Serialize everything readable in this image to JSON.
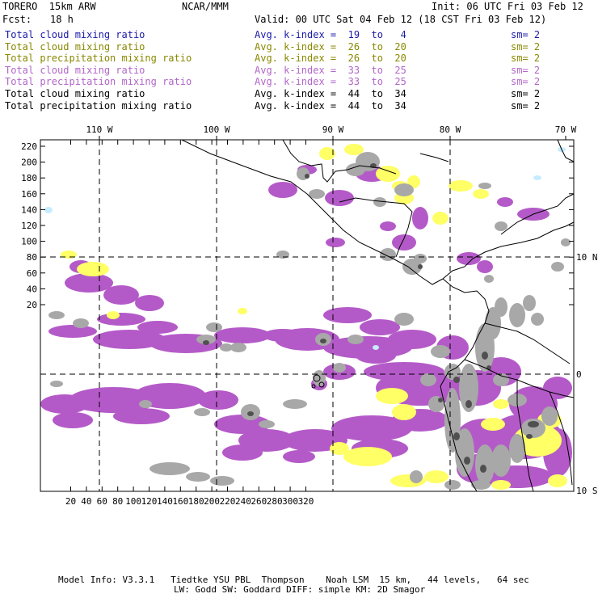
{
  "header": {
    "model": "TORERO  15km ARW",
    "org": "NCAR/MMM",
    "init": "Init: 06 UTC Fri 03 Feb 12",
    "fcst_label": "Fcst:",
    "fcst_value": "18 h",
    "valid": "Valid: 00 UTC Sat 04 Feb 12 (18 CST Fri 03 Feb 12)"
  },
  "legend": [
    {
      "field": "Total cloud mixing ratio",
      "kindex": "Avg. k-index =  19  to   4",
      "sm": "sm= 2",
      "color": "#1a1aa8"
    },
    {
      "field": "Total cloud mixing ratio",
      "kindex": "Avg. k-index =  26  to  20",
      "sm": "sm= 2",
      "color": "#888800"
    },
    {
      "field": "Total precipitation mixing ratio",
      "kindex": "Avg. k-index =  26  to  20",
      "sm": "sm= 2",
      "color": "#888800"
    },
    {
      "field": "Total cloud mixing ratio",
      "kindex": "Avg. k-index =  33  to  25",
      "sm": "sm= 2",
      "color": "#b266c8"
    },
    {
      "field": "Total precipitation mixing ratio",
      "kindex": "Avg. k-index =  33  to  25",
      "sm": "sm= 2",
      "color": "#b266c8"
    },
    {
      "field": "Total cloud mixing ratio",
      "kindex": "Avg. k-index =  44  to  34",
      "sm": "sm= 2",
      "color": "#000000"
    },
    {
      "field": "Total precipitation mixing ratio",
      "kindex": "Avg. k-index =  44  to  34",
      "sm": "sm= 2",
      "color": "#000000"
    }
  ],
  "map": {
    "top_lon_labels": [
      "110 W",
      "100 W",
      "90 W",
      "80 W",
      "70 W"
    ],
    "right_lat_labels": [
      "10 N",
      "0",
      "10 S"
    ],
    "y_ticks": [
      "220",
      "200",
      "180",
      "160",
      "140",
      "120",
      "100",
      "80",
      "60",
      "40",
      "20"
    ],
    "x_ticks": [
      "20",
      "40",
      "60",
      "80",
      "100",
      "120",
      "140",
      "160",
      "180",
      "200",
      "220",
      "240",
      "260",
      "280",
      "300",
      "320"
    ],
    "colors": {
      "light_blue": "#c6ecff",
      "yellow": "#ffff66",
      "purple": "#b45ac8",
      "gray": "#a8a8a8",
      "dark_gray": "#505050",
      "border": "#000000"
    }
  },
  "footer": {
    "line1": "Model Info: V3.3.1   Tiedtke YSU PBL  Thompson    Noah LSM  15 km,   44 levels,   64 sec",
    "line2": "LW: Godd SW: Goddard DIFF: simple KM: 2D Smagor"
  }
}
